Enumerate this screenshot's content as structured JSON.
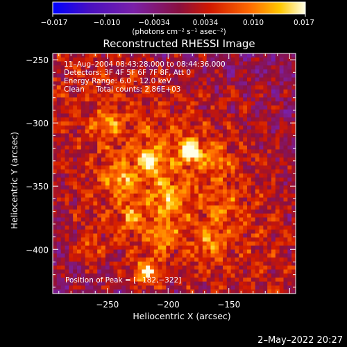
{
  "colorbar": {
    "ticks": [
      "−0.017",
      "−0.010",
      "−0.0034",
      "0.0034",
      "0.010",
      "0.017"
    ],
    "tick_values": [
      -0.017,
      -0.01,
      -0.0034,
      0.0034,
      0.01,
      0.017
    ],
    "range": [
      -0.017,
      0.017
    ],
    "unit_label": "(photons cm⁻² s⁻¹ asec⁻²)",
    "colors": [
      "#0000ff",
      "#5500aa",
      "#8020a0",
      "#a01010",
      "#e02000",
      "#ff7000",
      "#ffd000",
      "#ffffe0"
    ]
  },
  "chart_data": {
    "type": "heatmap",
    "title": "Reconstructed RHESSI Image",
    "xlabel": "Heliocentric X (arcsec)",
    "ylabel": "Heliocentric Y (arcsec)",
    "xlim": [
      -295,
      -95
    ],
    "ylim": [
      -435,
      -245
    ],
    "xticks": [
      -250,
      -200,
      -150
    ],
    "xtick_labels": [
      "−250",
      "−200",
      "−150"
    ],
    "yticks": [
      -250,
      -300,
      -350,
      -400
    ],
    "ytick_labels": [
      "−250",
      "−300",
      "−350",
      "−400"
    ],
    "peak": [
      -182,
      -322
    ],
    "annotations": {
      "time_range": "11–Aug–2004 08:43:28.000 to 08:44:36.000",
      "detectors": "Detectors: 3F 4F 5F 6F 7F 8F, Att 0",
      "energy_range": "Energy Range: 6.0 – 12.0 keV",
      "clean_info": "Clean     Total counts: 2.86E+03",
      "peak_position": "Position of Peak = [−182,−322]"
    },
    "sources": [
      {
        "x": -182,
        "y": -322,
        "intensity": 0.017
      },
      {
        "x": -215,
        "y": -330,
        "intensity": 0.01
      },
      {
        "x": -240,
        "y": -345,
        "intensity": 0.008
      },
      {
        "x": -200,
        "y": -360,
        "intensity": 0.008
      },
      {
        "x": -218,
        "y": -418,
        "intensity": 0.012
      },
      {
        "x": -205,
        "y": -390,
        "intensity": 0.007
      },
      {
        "x": -250,
        "y": -300,
        "intensity": 0.006
      },
      {
        "x": -165,
        "y": -395,
        "intensity": 0.006
      },
      {
        "x": -265,
        "y": -400,
        "intensity": 0.006
      },
      {
        "x": -160,
        "y": -330,
        "intensity": 0.005
      },
      {
        "x": -230,
        "y": -375,
        "intensity": 0.006
      },
      {
        "x": -150,
        "y": -370,
        "intensity": 0.004
      }
    ]
  },
  "footer": {
    "date": "2–May–2022 20:27"
  }
}
